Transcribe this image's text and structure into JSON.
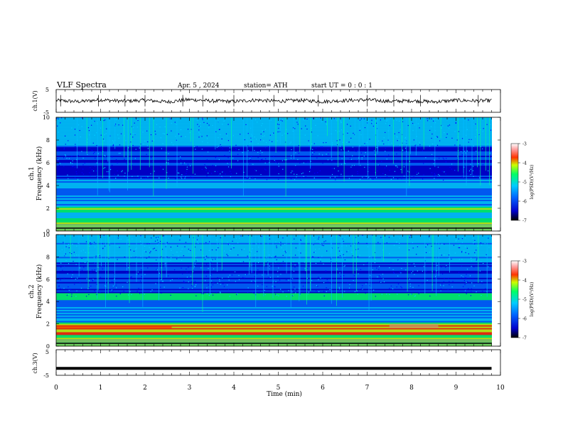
{
  "header": {
    "title": "VLF  Spectra",
    "date": "Apr. 5  , 2024",
    "station": "station= ATH",
    "start": "start  UT  =    0 : 0  : 1"
  },
  "chart_data": [
    {
      "type": "line",
      "ylabel": "ch.1(V)",
      "ylim": [
        -5,
        5
      ],
      "yticks": [
        "5",
        "-5"
      ],
      "xlim": [
        0,
        10
      ],
      "trace_color": "#000000",
      "x": [
        0,
        0.5,
        1,
        1.5,
        2,
        2.5,
        3,
        3.5,
        4,
        4.5,
        5,
        5.5,
        6,
        6.5,
        7,
        7.5,
        8,
        8.5,
        9,
        9.5,
        9.8
      ],
      "y": [
        0.2,
        -0.3,
        0.5,
        -0.1,
        0.3,
        -0.4,
        0.6,
        0,
        -0.2,
        0.4,
        -0.1,
        0.3,
        -0.3,
        0.2,
        0.5,
        -0.2,
        0.1,
        -0.4,
        0.3,
        0,
        0.2
      ]
    },
    {
      "type": "heatmap",
      "ylabel_line1": "ch.1",
      "ylabel_line2": "Frequency  (kHz)",
      "ylim": [
        0,
        10
      ],
      "yticks": [
        "0",
        "2",
        "4",
        "6",
        "8",
        "10"
      ],
      "xlim": [
        0,
        9.8
      ],
      "colorbar": {
        "label": "log(PSD)(V²/Hz)",
        "range": [
          -7,
          -3
        ],
        "ticks": [
          "-3",
          "-4",
          "-5",
          "-6",
          "-7"
        ],
        "colors": [
          "#000000",
          "#0000cc",
          "#0066ff",
          "#00ccff",
          "#00ff66",
          "#ccff00",
          "#ff3300",
          "#ff9999",
          "#ffffff"
        ]
      }
    },
    {
      "type": "heatmap",
      "ylabel_line1": "ch.2",
      "ylabel_line2": "Frequency  (kHz)",
      "ylim": [
        0,
        10
      ],
      "yticks": [
        "0",
        "2",
        "4",
        "6",
        "8",
        "10"
      ],
      "xlim": [
        0,
        9.8
      ],
      "colorbar": {
        "label": "log(PSD)(V²/Hz)",
        "range": [
          -7,
          -3
        ],
        "ticks": [
          "-3",
          "-4",
          "-5",
          "-6",
          "-7"
        ],
        "colors": [
          "#000000",
          "#0000cc",
          "#0066ff",
          "#00ccff",
          "#00ff66",
          "#ccff00",
          "#ff3300",
          "#ff9999",
          "#ffffff"
        ]
      }
    },
    {
      "type": "line",
      "ylabel": "ch.3(V)",
      "ylim": [
        -5,
        5
      ],
      "yticks": [
        "5",
        "-5"
      ],
      "xlim": [
        0,
        10
      ],
      "trace_color": "#000000",
      "x": [
        0,
        9.8
      ],
      "y": [
        -2.3,
        -2.3
      ]
    }
  ],
  "xaxis": {
    "label": "Time  (min)",
    "ticks": [
      "0",
      "1",
      "2",
      "3",
      "4",
      "5",
      "6",
      "7",
      "8",
      "9",
      "10"
    ],
    "range": [
      0,
      10
    ]
  }
}
